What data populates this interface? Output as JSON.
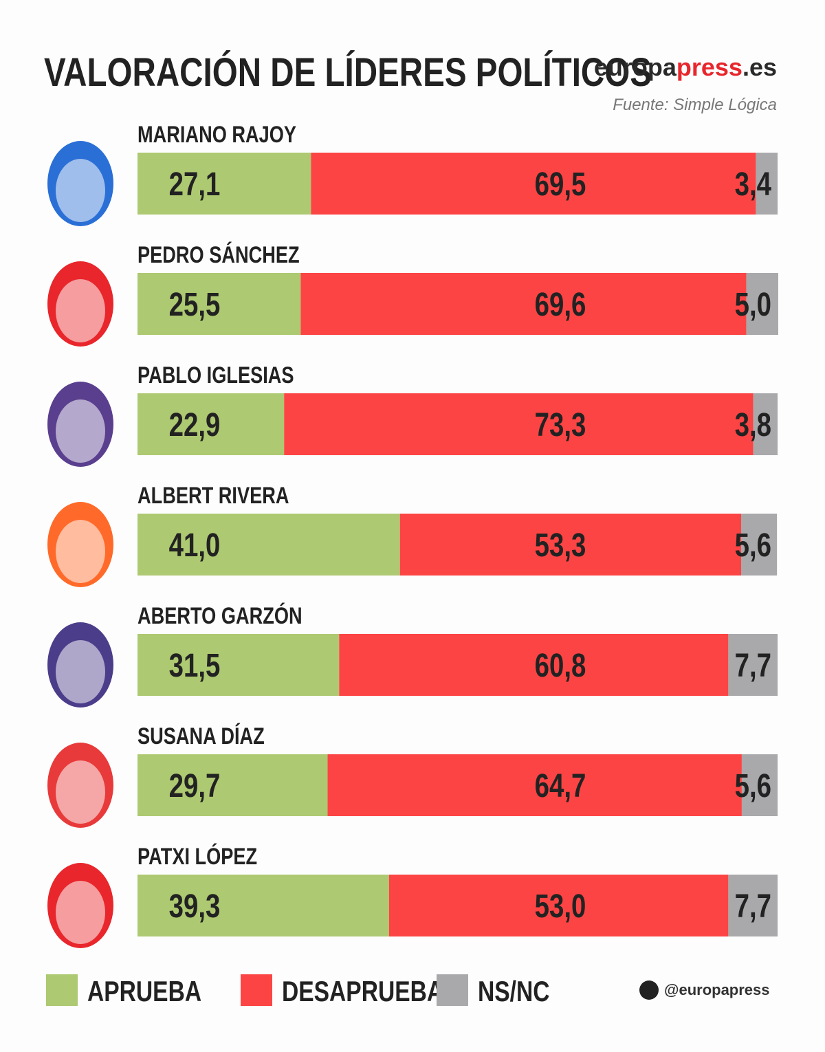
{
  "chart_data": {
    "type": "stacked-bar-horizontal",
    "title": "VALORACIÓN DE LÍDERES POLÍTICOS",
    "brand": [
      "europa",
      "press",
      ".es"
    ],
    "source": "Fuente: Simple Lógica",
    "social": "@europapress",
    "categories": [
      "MARIANO RAJOY",
      "PEDRO SÁNCHEZ",
      "PABLO IGLESIAS",
      "ALBERT RIVERA",
      "ABERTO GARZÓN",
      "SUSANA DÍAZ",
      "PATXI LÓPEZ"
    ],
    "series": [
      {
        "name": "APRUEBA",
        "color": "#adc971",
        "values": [
          27.1,
          25.5,
          22.9,
          41.0,
          31.5,
          29.7,
          39.3
        ],
        "value_labels": [
          "27,1",
          "25,5",
          "22,9",
          "41,0",
          "31,5",
          "29,7",
          "39,3"
        ]
      },
      {
        "name": "DESAPRUEBA",
        "color": "#fc4444",
        "values": [
          69.5,
          69.6,
          73.3,
          53.3,
          60.8,
          64.7,
          53.0
        ],
        "value_labels": [
          "69,5",
          "69,6",
          "73,3",
          "53,3",
          "60,8",
          "64,7",
          "53,0"
        ]
      },
      {
        "name": "NS/NC",
        "color": "#a9a8aa",
        "values": [
          3.4,
          5.0,
          3.8,
          5.6,
          7.7,
          5.6,
          7.7
        ],
        "value_labels": [
          "3,4",
          "5,0",
          "3,8",
          "5,6",
          "7,7",
          "5,6",
          "7,7"
        ]
      }
    ]
  }
}
